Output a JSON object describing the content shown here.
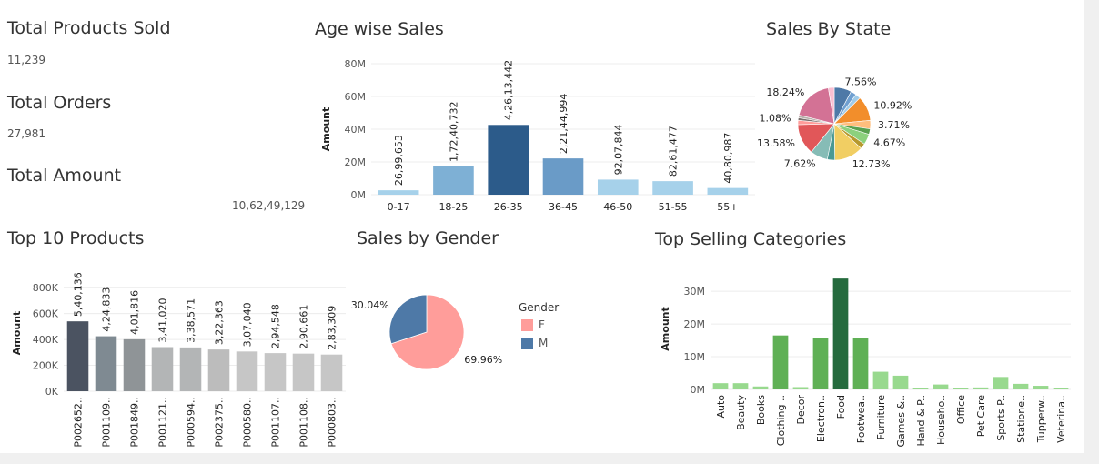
{
  "kpis": {
    "products_sold": {
      "title": "Total Products Sold",
      "value": "11,239"
    },
    "orders": {
      "title": "Total Orders",
      "value": "27,981"
    },
    "amount": {
      "title": "Total Amount",
      "value": "10,62,49,129"
    }
  },
  "titles": {
    "age": "Age wise Sales",
    "state": "Sales By State",
    "products": "Top 10 Products",
    "gender": "Sales by Gender",
    "categories": "Top Selling Categories"
  },
  "legend": {
    "title": "Gender",
    "items": [
      {
        "label": "F",
        "color": "#ff9d9a"
      },
      {
        "label": "M",
        "color": "#4e79a7"
      }
    ]
  },
  "chart_data": [
    {
      "id": "age",
      "type": "bar",
      "title": "Age wise Sales",
      "ylabel": "Amount",
      "ylim": [
        0,
        80000000
      ],
      "yticks": [
        {
          "v": 0,
          "t": "0M"
        },
        {
          "v": 20000000,
          "t": "20M"
        },
        {
          "v": 40000000,
          "t": "40M"
        },
        {
          "v": 60000000,
          "t": "60M"
        },
        {
          "v": 80000000,
          "t": "80M"
        }
      ],
      "categories": [
        "0-17",
        "18-25",
        "26-35",
        "36-45",
        "46-50",
        "51-55",
        "55+"
      ],
      "values": [
        2699653,
        17240732,
        42613442,
        22144994,
        9207844,
        8261477,
        4080987
      ],
      "labels": [
        "26,99,653",
        "1,72,40,732",
        "4,26,13,442",
        "2,21,44,994",
        "92,07,844",
        "82,61,477",
        "40,80,987"
      ],
      "colors": [
        "#a6d1ea",
        "#7eb0d5",
        "#2c5b8a",
        "#6a9bc7",
        "#a6d1ea",
        "#a6d1ea",
        "#a6d1ea"
      ]
    },
    {
      "id": "state",
      "type": "pie",
      "title": "Sales By State",
      "slices": [
        {
          "value": 7.56,
          "label": "7.56%",
          "color": "#4e79a7"
        },
        {
          "value": 2.5,
          "label": "",
          "color": "#6f9fd0"
        },
        {
          "value": 2.2,
          "label": "",
          "color": "#a0cbe8"
        },
        {
          "value": 10.92,
          "label": "10.92%",
          "color": "#f28e2b"
        },
        {
          "value": 3.71,
          "label": "3.71%",
          "color": "#ffbe7d"
        },
        {
          "value": 2.4,
          "label": "",
          "color": "#59a14f"
        },
        {
          "value": 4.67,
          "label": "4.67%",
          "color": "#8cd17d"
        },
        {
          "value": 2.3,
          "label": "",
          "color": "#b6992d"
        },
        {
          "value": 12.73,
          "label": "12.73%",
          "color": "#f1ce63"
        },
        {
          "value": 3.3,
          "label": "",
          "color": "#499894"
        },
        {
          "value": 7.62,
          "label": "7.62%",
          "color": "#86bcb6"
        },
        {
          "value": 13.58,
          "label": "13.58%",
          "color": "#e15759"
        },
        {
          "value": 1.9,
          "label": "",
          "color": "#ff9d9a"
        },
        {
          "value": 1.08,
          "label": "1.08%",
          "color": "#79706e"
        },
        {
          "value": 1.2,
          "label": "",
          "color": "#bab0ac"
        },
        {
          "value": 18.24,
          "label": "18.24%",
          "color": "#d37295"
        },
        {
          "value": 2.6,
          "label": "",
          "color": "#fabfd2"
        }
      ]
    },
    {
      "id": "products",
      "type": "bar",
      "title": "Top 10 Products",
      "ylabel": "Amount",
      "ylim": [
        0,
        900000
      ],
      "yticks": [
        {
          "v": 0,
          "t": "0K"
        },
        {
          "v": 200000,
          "t": "200K"
        },
        {
          "v": 400000,
          "t": "400K"
        },
        {
          "v": 600000,
          "t": "600K"
        },
        {
          "v": 800000,
          "t": "800K"
        }
      ],
      "categories": [
        "P002652..",
        "P001109..",
        "P001849..",
        "P001121..",
        "P000594..",
        "P002375..",
        "P000580..",
        "P001107..",
        "P001108..",
        "P000803.."
      ],
      "values": [
        540136,
        424833,
        401816,
        341020,
        338571,
        322363,
        307040,
        294548,
        290661,
        283309
      ],
      "labels": [
        "5,40,136",
        "4,24,833",
        "4,01,816",
        "3,41,020",
        "3,38,571",
        "3,22,363",
        "3,07,040",
        "2,94,548",
        "2,90,661",
        "2,83,309"
      ],
      "colors": [
        "#4b5361",
        "#7f8a92",
        "#8f9497",
        "#b3b5b6",
        "#b3b5b6",
        "#bcbcbc",
        "#c6c6c6",
        "#c6c6c6",
        "#c6c6c6",
        "#c6c6c6"
      ]
    },
    {
      "id": "gender",
      "type": "pie",
      "title": "Sales by Gender",
      "slices": [
        {
          "name": "F",
          "value": 69.96,
          "label": "69.96%",
          "color": "#ff9d9a"
        },
        {
          "name": "M",
          "value": 30.04,
          "label": "30.04%",
          "color": "#4e79a7"
        }
      ]
    },
    {
      "id": "categories",
      "type": "bar",
      "title": "Top Selling Categories",
      "ylabel": "Amount",
      "ylim": [
        0,
        37000000
      ],
      "yticks": [
        {
          "v": 0,
          "t": "0M"
        },
        {
          "v": 10000000,
          "t": "10M"
        },
        {
          "v": 20000000,
          "t": "20M"
        },
        {
          "v": 30000000,
          "t": "30M"
        }
      ],
      "categories": [
        "Auto",
        "Beauty",
        "Books",
        "Clothing ..",
        "Decor",
        "Electron..",
        "Food",
        "Footwea..",
        "Furniture",
        "Games &..",
        "Hand & P..",
        "Househo..",
        "Office",
        "Pet Care",
        "Sports P..",
        "Statione..",
        "Tupperw..",
        "Veterina.."
      ],
      "values": [
        1900000,
        1900000,
        900000,
        16500000,
        700000,
        15700000,
        33900000,
        15600000,
        5400000,
        4200000,
        500000,
        1500000,
        100000,
        600000,
        3800000,
        1700000,
        1100000,
        100000
      ],
      "colors": [
        "#98d98e",
        "#98d98e",
        "#98d98e",
        "#5fb055",
        "#98d98e",
        "#5fb055",
        "#256b3e",
        "#5fb055",
        "#98d98e",
        "#98d98e",
        "#98d98e",
        "#98d98e",
        "#98d98e",
        "#98d98e",
        "#98d98e",
        "#98d98e",
        "#98d98e",
        "#98d98e"
      ]
    }
  ]
}
